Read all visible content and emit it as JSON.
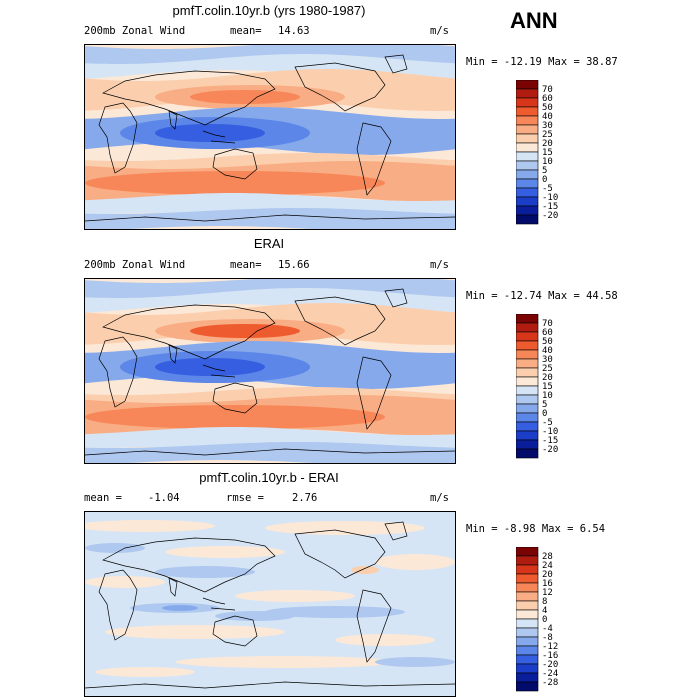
{
  "season": "ANN",
  "panels": [
    {
      "title": "pmfT.colin.10yr.b (yrs 1980-1987)",
      "variable": "200mb Zonal Wind",
      "stat_left": "mean=",
      "stat_left_value": "14.63",
      "stat_right": "",
      "stat_right_value": "",
      "units": "m/s",
      "minmax": "Min = -12.19 Max = 38.87",
      "colorbar": {
        "labels": [
          "70",
          "60",
          "50",
          "40",
          "30",
          "25",
          "20",
          "15",
          "10",
          "5",
          "0",
          "-5",
          "-10",
          "-15",
          "-20"
        ],
        "colors": [
          "#7a0403",
          "#b01c10",
          "#d8361b",
          "#ee5b2f",
          "#f78758",
          "#f9ad84",
          "#fbcfae",
          "#fce8d7",
          "#d6e5f5",
          "#aec8ef",
          "#86a9ec",
          "#5c86e8",
          "#355fe0",
          "#1b3dc8",
          "#0a1e9c",
          "#020a6a"
        ]
      },
      "map_style": "model"
    },
    {
      "title": "ERAI",
      "variable": "200mb Zonal Wind",
      "stat_left": "mean=",
      "stat_left_value": "15.66",
      "stat_right": "",
      "stat_right_value": "",
      "units": "m/s",
      "minmax": "Min = -12.74 Max = 44.58",
      "colorbar": {
        "labels": [
          "70",
          "60",
          "50",
          "40",
          "30",
          "25",
          "20",
          "15",
          "10",
          "5",
          "0",
          "-5",
          "-10",
          "-15",
          "-20"
        ],
        "colors": [
          "#7a0403",
          "#b01c10",
          "#d8361b",
          "#ee5b2f",
          "#f78758",
          "#f9ad84",
          "#fbcfae",
          "#fce8d7",
          "#d6e5f5",
          "#aec8ef",
          "#86a9ec",
          "#5c86e8",
          "#355fe0",
          "#1b3dc8",
          "#0a1e9c",
          "#020a6a"
        ]
      },
      "map_style": "obs"
    },
    {
      "title": "pmfT.colin.10yr.b - ERAI",
      "variable": "",
      "stat_left": "mean =",
      "stat_left_value": "-1.04",
      "stat_right": "rmse =",
      "stat_right_value": "2.76",
      "units": "m/s",
      "minmax": "Min = -8.98 Max = 6.54",
      "colorbar": {
        "labels": [
          "28",
          "24",
          "20",
          "16",
          "12",
          "8",
          "4",
          "0",
          "-4",
          "-8",
          "-12",
          "-16",
          "-20",
          "-24",
          "-28"
        ],
        "colors": [
          "#7a0403",
          "#b01c10",
          "#d8361b",
          "#ee5b2f",
          "#f78758",
          "#f9ad84",
          "#fbcfae",
          "#fce8d7",
          "#d6e5f5",
          "#aec8ef",
          "#86a9ec",
          "#5c86e8",
          "#355fe0",
          "#1b3dc8",
          "#0a1e9c",
          "#020a6a"
        ]
      },
      "map_style": "diff"
    }
  ],
  "chart_data": [
    {
      "type": "heatmap",
      "title": "pmfT.colin.10yr.b (yrs 1980-1987)",
      "subtitle": "200mb Zonal Wind",
      "units": "m/s",
      "mean": 14.63,
      "min": -12.19,
      "max": 38.87,
      "levels": [
        -20,
        -15,
        -10,
        -5,
        0,
        5,
        10,
        15,
        20,
        25,
        30,
        40,
        50,
        60,
        70
      ]
    },
    {
      "type": "heatmap",
      "title": "ERAI",
      "subtitle": "200mb Zonal Wind",
      "units": "m/s",
      "mean": 15.66,
      "min": -12.74,
      "max": 44.58,
      "levels": [
        -20,
        -15,
        -10,
        -5,
        0,
        5,
        10,
        15,
        20,
        25,
        30,
        40,
        50,
        60,
        70
      ]
    },
    {
      "type": "heatmap",
      "title": "pmfT.colin.10yr.b - ERAI",
      "units": "m/s",
      "mean": -1.04,
      "rmse": 2.76,
      "min": -8.98,
      "max": 6.54,
      "levels": [
        -28,
        -24,
        -20,
        -16,
        -12,
        -8,
        -4,
        0,
        4,
        8,
        12,
        16,
        20,
        24,
        28
      ]
    }
  ]
}
